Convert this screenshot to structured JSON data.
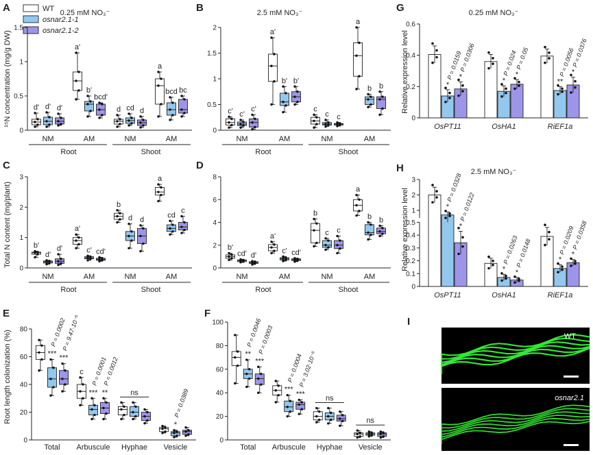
{
  "colors": {
    "wt": "#ffffff",
    "m1": "#93c8ee",
    "m2": "#9d95ea",
    "green": "#39ff3a"
  },
  "legend": [
    {
      "key": "wt",
      "label": "WT",
      "italic": false
    },
    {
      "key": "m1",
      "label": "osnar2.1-1",
      "italic": true
    },
    {
      "key": "m2",
      "label": "osnar2.1-2",
      "italic": true
    }
  ],
  "panels": {
    "A": {
      "letter": "A",
      "title": "0.25 mM NO₃⁻",
      "ylabel": "¹⁵N concentration (mg/g DW)"
    },
    "B": {
      "letter": "B",
      "title": "2.5 mM NO₃⁻"
    },
    "C": {
      "letter": "C",
      "ylabel": "Total  N content (mg/plant)"
    },
    "D": {
      "letter": "D"
    },
    "E": {
      "letter": "E",
      "ylabel": "Root length colonization (%)"
    },
    "F": {
      "letter": "F"
    },
    "G": {
      "letter": "G",
      "title": "0.25 mM NO₃⁻",
      "ylabel": "Relative expression level"
    },
    "H": {
      "letter": "H",
      "title": "2.5 mM NO₃⁻",
      "ylabel": "Relative expression level"
    },
    "I": {
      "letter": "I",
      "wt_label": "WT",
      "mut_label": "osnar2.1"
    }
  },
  "nm_label": "NM",
  "am_label": "AM",
  "root_label": "Root",
  "shoot_label": "Shoot",
  "chart_data": [
    {
      "id": "A",
      "type": "box",
      "ylim": [
        0,
        1.5
      ],
      "yticks": [
        0.0,
        0.5,
        1.0,
        1.5
      ],
      "groups": [
        {
          "label": "NM",
          "letters": [
            "d'",
            "d'",
            "d'"
          ],
          "boxes": [
            [
              0.05,
              0.08,
              0.12,
              0.16,
              0.25
            ],
            [
              0.05,
              0.08,
              0.13,
              0.19,
              0.26
            ],
            [
              0.07,
              0.09,
              0.13,
              0.18,
              0.24
            ]
          ]
        },
        {
          "label": "AM",
          "letters": [
            "a'",
            "b'",
            "bcd'"
          ],
          "boxes": [
            [
              0.45,
              0.58,
              0.72,
              0.85,
              1.13
            ],
            [
              0.2,
              0.28,
              0.38,
              0.42,
              0.5
            ],
            [
              0.18,
              0.22,
              0.3,
              0.38,
              0.4
            ]
          ]
        },
        {
          "label": "NM",
          "letters": [
            "d",
            "cd",
            "d"
          ],
          "boxes": [
            [
              0.05,
              0.09,
              0.13,
              0.16,
              0.22
            ],
            [
              0.07,
              0.1,
              0.14,
              0.18,
              0.24
            ],
            [
              0.04,
              0.07,
              0.11,
              0.15,
              0.2
            ]
          ]
        },
        {
          "label": "AM",
          "letters": [
            "a",
            "bcd",
            "bc"
          ],
          "boxes": [
            [
              0.2,
              0.38,
              0.65,
              0.75,
              0.85
            ],
            [
              0.15,
              0.22,
              0.3,
              0.4,
              0.48
            ],
            [
              0.2,
              0.25,
              0.3,
              0.45,
              0.5
            ]
          ]
        }
      ]
    },
    {
      "id": "B",
      "type": "box",
      "ylim": [
        0,
        2.0
      ],
      "yticks": [
        0.0,
        0.5,
        1.0,
        1.5,
        2.0
      ],
      "groups": [
        {
          "label": "NM",
          "letters": [
            "c'",
            "c'",
            "c'"
          ],
          "boxes": [
            [
              0.05,
              0.1,
              0.15,
              0.22,
              0.26
            ],
            [
              0.05,
              0.09,
              0.12,
              0.16,
              0.2
            ],
            [
              0.02,
              0.06,
              0.15,
              0.22,
              0.3
            ]
          ]
        },
        {
          "label": "AM",
          "letters": [
            "a'",
            "b'",
            "b'"
          ],
          "boxes": [
            [
              0.5,
              0.95,
              1.25,
              1.48,
              1.8
            ],
            [
              0.35,
              0.48,
              0.55,
              0.72,
              0.85
            ],
            [
              0.5,
              0.55,
              0.65,
              0.75,
              0.85
            ]
          ]
        },
        {
          "label": "NM",
          "letters": [
            "c",
            "c",
            "c"
          ],
          "boxes": [
            [
              0.05,
              0.12,
              0.18,
              0.25,
              0.3
            ],
            [
              0.07,
              0.1,
              0.12,
              0.15,
              0.2
            ],
            [
              0.08,
              0.1,
              0.12,
              0.13,
              0.15
            ]
          ]
        },
        {
          "label": "AM",
          "letters": [
            "a",
            "b",
            "b"
          ],
          "boxes": [
            [
              0.8,
              1.05,
              1.45,
              1.7,
              2.0
            ],
            [
              0.45,
              0.5,
              0.6,
              0.65,
              0.7
            ],
            [
              0.3,
              0.42,
              0.6,
              0.65,
              0.75
            ]
          ]
        }
      ]
    },
    {
      "id": "C",
      "type": "box",
      "ylim": [
        0,
        3
      ],
      "yticks": [
        0,
        1,
        2,
        3
      ],
      "groups": [
        {
          "label": "NM",
          "letters": [
            "b'",
            "d'",
            "d'"
          ],
          "boxes": [
            [
              0.35,
              0.45,
              0.5,
              0.52,
              0.55
            ],
            [
              0.12,
              0.16,
              0.2,
              0.23,
              0.25
            ],
            [
              0.1,
              0.15,
              0.22,
              0.3,
              0.45
            ]
          ]
        },
        {
          "label": "AM",
          "letters": [
            "a'",
            "c'",
            "cd'"
          ],
          "boxes": [
            [
              0.65,
              0.78,
              0.9,
              1.0,
              1.1
            ],
            [
              0.25,
              0.3,
              0.33,
              0.37,
              0.4
            ],
            [
              0.22,
              0.25,
              0.28,
              0.32,
              0.35
            ]
          ]
        },
        {
          "label": "NM",
          "letters": [
            "b",
            "d",
            "d"
          ],
          "boxes": [
            [
              1.5,
              1.6,
              1.7,
              1.8,
              1.9
            ],
            [
              0.65,
              0.9,
              1.05,
              1.2,
              1.45
            ],
            [
              0.55,
              0.8,
              1.05,
              1.3,
              1.4
            ]
          ]
        },
        {
          "label": "AM",
          "letters": [
            "a",
            "cd",
            "c"
          ],
          "boxes": [
            [
              2.2,
              2.4,
              2.5,
              2.65,
              2.75
            ],
            [
              1.1,
              1.2,
              1.3,
              1.42,
              1.55
            ],
            [
              1.15,
              1.25,
              1.35,
              1.5,
              1.7
            ]
          ]
        }
      ]
    },
    {
      "id": "D",
      "type": "box",
      "ylim": [
        0,
        8
      ],
      "yticks": [
        0,
        2,
        4,
        6,
        8
      ],
      "groups": [
        {
          "label": "NM",
          "letters": [
            "b'",
            "cd'",
            "d'"
          ],
          "boxes": [
            [
              0.7,
              0.85,
              1.0,
              1.15,
              1.3
            ],
            [
              0.5,
              0.55,
              0.65,
              0.7,
              0.75
            ],
            [
              0.3,
              0.4,
              0.45,
              0.55,
              0.6
            ]
          ]
        },
        {
          "label": "AM",
          "letters": [
            "a'",
            "c'",
            "cd'"
          ],
          "boxes": [
            [
              1.3,
              1.5,
              1.8,
              2.05,
              2.3
            ],
            [
              0.6,
              0.7,
              0.8,
              0.9,
              1.0
            ],
            [
              0.55,
              0.65,
              0.72,
              0.8,
              0.85
            ]
          ]
        },
        {
          "label": "NM",
          "letters": [
            "b",
            "c",
            "c"
          ],
          "boxes": [
            [
              1.9,
              2.2,
              3.3,
              3.9,
              4.3
            ],
            [
              1.6,
              1.8,
              2.0,
              2.4,
              2.6
            ],
            [
              1.3,
              1.7,
              2.0,
              2.4,
              2.8
            ]
          ]
        },
        {
          "label": "AM",
          "letters": [
            "a",
            "b",
            "b"
          ],
          "boxes": [
            [
              4.6,
              5.0,
              5.5,
              6.0,
              6.4
            ],
            [
              2.5,
              2.9,
              3.1,
              3.8,
              4.0
            ],
            [
              2.8,
              3.0,
              3.2,
              3.5,
              3.7
            ]
          ]
        }
      ]
    },
    {
      "id": "E",
      "type": "box",
      "ylim": [
        0,
        80
      ],
      "yticks": [
        0,
        20,
        40,
        60,
        80
      ],
      "categories": [
        "Total",
        "Arbuscule",
        "Hyphae",
        "Vesicle"
      ],
      "groups": [
        {
          "label": "Total",
          "letters": [
            "",
            "***",
            "***"
          ],
          "pvals": [
            "",
            "P = 0.0002",
            "P = 9.47·10⁻⁵"
          ],
          "boxes": [
            [
              50,
              58,
              63,
              68,
              72
            ],
            [
              32,
              38,
              44,
              52,
              58
            ],
            [
              35,
              40,
              44,
              50,
              55
            ]
          ]
        },
        {
          "label": "Arbuscule",
          "letters": [
            "c",
            "***",
            "**"
          ],
          "pvals": [
            "",
            "P = 0.0001",
            "P = 0.0012"
          ],
          "boxes": [
            [
              25,
              30,
              35,
              40,
              45
            ],
            [
              15,
              18,
              22,
              25,
              30
            ],
            [
              15,
              19,
              23,
              27,
              30
            ]
          ]
        },
        {
          "label": "Hyphae",
          "letters": [
            "",
            "",
            ""
          ],
          "pvals": [
            "",
            "",
            ""
          ],
          "boxes": [
            [
              15,
              18,
              22,
              24,
              27
            ],
            [
              15,
              17,
              20,
              24,
              27
            ],
            [
              12,
              14,
              17,
              20,
              22
            ]
          ]
        },
        {
          "label": "Vesicle",
          "letters": [
            "",
            "*",
            ""
          ],
          "pvals": [
            "",
            "P = 0.0389",
            ""
          ],
          "boxes": [
            [
              5,
              6,
              8,
              9,
              10
            ],
            [
              2,
              3,
              5,
              6,
              7
            ],
            [
              3,
              4,
              6,
              7,
              9
            ]
          ]
        }
      ],
      "ns": [
        {
          "from": 2,
          "label": "ns"
        }
      ]
    },
    {
      "id": "F",
      "type": "box",
      "ylim": [
        0,
        100
      ],
      "yticks": [
        0,
        20,
        40,
        60,
        80,
        100
      ],
      "categories": [
        "Total",
        "Arbuscule",
        "Hyphae",
        "Vesicle"
      ],
      "groups": [
        {
          "label": "Total",
          "letters": [
            "",
            "**",
            "***"
          ],
          "pvals": [
            "",
            "P = 0.0046",
            "P = 0.0003"
          ],
          "boxes": [
            [
              48,
              63,
              70,
              75,
              89
            ],
            [
              45,
              52,
              56,
              60,
              68
            ],
            [
              40,
              47,
              52,
              56,
              62
            ]
          ]
        },
        {
          "label": "Arbuscule",
          "letters": [
            "",
            "***",
            "***"
          ],
          "pvals": [
            "",
            "P = 0.0004",
            "P = 3.02·10⁻⁵"
          ],
          "boxes": [
            [
              32,
              38,
              42,
              46,
              50
            ],
            [
              20,
              24,
              28,
              33,
              38
            ],
            [
              22,
              26,
              30,
              32,
              34
            ]
          ]
        },
        {
          "label": "Hyphae",
          "letters": [
            "",
            "",
            ""
          ],
          "pvals": [
            "",
            "",
            ""
          ],
          "boxes": [
            [
              15,
              17,
              20,
              24,
              27
            ],
            [
              14,
              17,
              20,
              23,
              27
            ],
            [
              12,
              16,
              18,
              21,
              24
            ]
          ]
        },
        {
          "label": "Vesicle",
          "letters": [
            "",
            "",
            ""
          ],
          "pvals": [
            "",
            "",
            ""
          ],
          "boxes": [
            [
              2,
              3,
              5,
              6,
              8
            ],
            [
              3,
              4,
              5,
              6,
              7
            ],
            [
              2,
              3,
              5,
              6,
              7
            ]
          ]
        }
      ],
      "ns": [
        {
          "from": 2,
          "label": "ns"
        },
        {
          "from": 3,
          "label": "ns"
        }
      ]
    },
    {
      "id": "G",
      "type": "bar",
      "ylim": [
        0,
        0.6
      ],
      "yticks": [
        0.0,
        0.2,
        0.4,
        0.6
      ],
      "categories": [
        "OsPT11",
        "OsHA1",
        "RiEF1a"
      ],
      "series": [
        {
          "name": "WT",
          "values": [
            0.405,
            0.36,
            0.395
          ],
          "errors": [
            0.055,
            0.045,
            0.045
          ]
        },
        {
          "name": "osnar2.1-1",
          "values": [
            0.14,
            0.17,
            0.175
          ],
          "errors": [
            0.04,
            0.035,
            0.025
          ]
        },
        {
          "name": "osnar2.1-2",
          "values": [
            0.185,
            0.215,
            0.21
          ],
          "errors": [
            0.045,
            0.03,
            0.05
          ]
        }
      ],
      "sig": [
        [
          "",
          "*",
          "*"
        ],
        [
          "",
          "*",
          "*"
        ],
        [
          "",
          "**",
          "*"
        ]
      ],
      "pvals": [
        [
          "",
          "P = 0.0159",
          "P = 0.0306"
        ],
        [
          "",
          "P = 0.024",
          "P = 0.05"
        ],
        [
          "",
          "P = 0.0056",
          "P = 0.0376"
        ]
      ]
    },
    {
      "id": "H",
      "type": "bar",
      "broken_axis": true,
      "yticks_lower": [
        0.0,
        0.1,
        0.2,
        0.3,
        0.4,
        0.5
      ],
      "yticks_upper": [
        1,
        2,
        3
      ],
      "categories": [
        "OsPT11",
        "OsHA1",
        "RiEF1a"
      ],
      "series": [
        {
          "name": "WT",
          "values": [
            2.0,
            0.18,
            0.39
          ],
          "errors": [
            0.5,
            0.04,
            0.07
          ]
        },
        {
          "name": "osnar2.1-1",
          "values": [
            0.7,
            0.07,
            0.14
          ],
          "errors": [
            0.2,
            0.025,
            0.03
          ]
        },
        {
          "name": "osnar2.1-2",
          "values": [
            0.34,
            0.05,
            0.185
          ],
          "errors": [
            0.09,
            0.02,
            0.025
          ]
        }
      ],
      "sig": [
        [
          "",
          "*",
          "*"
        ],
        [
          "",
          "*",
          "*"
        ],
        [
          "",
          "*",
          "*"
        ]
      ],
      "pvals": [
        [
          "",
          "P = 0.0328",
          "P = 0.0122"
        ],
        [
          "",
          "P = 0.0263",
          "P = 0.0148"
        ],
        [
          "",
          "P = 0.0209",
          "P = 0.0358"
        ]
      ]
    }
  ]
}
